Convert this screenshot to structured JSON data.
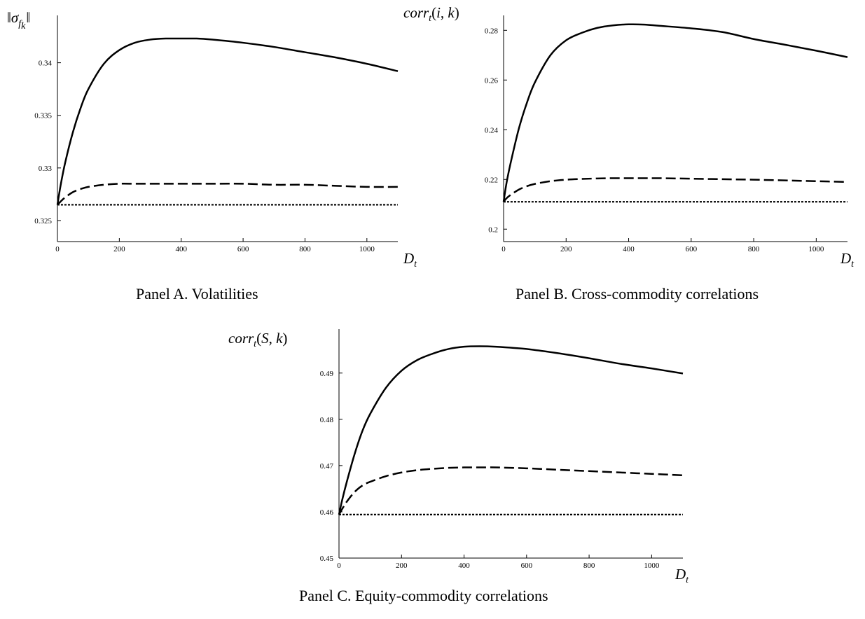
{
  "chart_data": [
    {
      "type": "line",
      "panel": "A",
      "caption": "Panel A. Volatilities",
      "ylabel": "||σ_fk||",
      "xlabel": "D_t",
      "xlim": [
        0,
        1100
      ],
      "ylim": [
        0.323,
        0.3445
      ],
      "xticks": [
        0,
        200,
        400,
        600,
        800,
        1000
      ],
      "yticks": [
        0.325,
        0.33,
        0.335,
        0.34
      ],
      "ytick_labels": [
        "0.325",
        "0.33",
        "0.335",
        "0.34"
      ],
      "x": [
        0,
        10,
        25,
        50,
        75,
        100,
        150,
        200,
        250,
        300,
        350,
        400,
        450,
        500,
        600,
        700,
        800,
        900,
        1000,
        1100
      ],
      "series": [
        {
          "style": "solid",
          "values": [
            0.3265,
            0.3283,
            0.3305,
            0.3334,
            0.3357,
            0.3375,
            0.3399,
            0.3412,
            0.3419,
            0.3422,
            0.3423,
            0.3423,
            0.3423,
            0.3422,
            0.3419,
            0.3415,
            0.341,
            0.3405,
            0.3399,
            0.3392
          ]
        },
        {
          "style": "dashed",
          "values": [
            0.3265,
            0.3268,
            0.3272,
            0.3277,
            0.328,
            0.3282,
            0.3284,
            0.3285,
            0.3285,
            0.3285,
            0.3285,
            0.3285,
            0.3285,
            0.3285,
            0.3285,
            0.3284,
            0.3284,
            0.3283,
            0.3282,
            0.3282
          ]
        },
        {
          "style": "dotted",
          "values": [
            0.3265,
            0.3265,
            0.3265,
            0.3265,
            0.3265,
            0.3265,
            0.3265,
            0.3265,
            0.3265,
            0.3265,
            0.3265,
            0.3265,
            0.3265,
            0.3265,
            0.3265,
            0.3265,
            0.3265,
            0.3265,
            0.3265,
            0.3265
          ]
        }
      ]
    },
    {
      "type": "line",
      "panel": "B",
      "caption": "Panel B. Cross-commodity correlations",
      "ylabel": "corr_t(i, k)",
      "xlabel": "D_t",
      "xlim": [
        0,
        1100
      ],
      "ylim": [
        0.195,
        0.286
      ],
      "xticks": [
        0,
        200,
        400,
        600,
        800,
        1000
      ],
      "yticks": [
        0.2,
        0.22,
        0.24,
        0.26,
        0.28
      ],
      "ytick_labels": [
        "0.2",
        "0.22",
        "0.24",
        "0.26",
        "0.28"
      ],
      "x": [
        0,
        10,
        25,
        50,
        75,
        100,
        150,
        200,
        250,
        300,
        350,
        400,
        450,
        500,
        600,
        700,
        800,
        900,
        1000,
        1100
      ],
      "series": [
        {
          "style": "solid",
          "values": [
            0.211,
            0.219,
            0.228,
            0.241,
            0.251,
            0.259,
            0.27,
            0.276,
            0.279,
            0.281,
            0.282,
            0.2824,
            0.2823,
            0.2818,
            0.2808,
            0.2793,
            0.2765,
            0.2742,
            0.2718,
            0.2692
          ]
        },
        {
          "style": "dashed",
          "values": [
            0.211,
            0.2125,
            0.214,
            0.216,
            0.2173,
            0.2182,
            0.2193,
            0.2199,
            0.2202,
            0.2204,
            0.2205,
            0.2205,
            0.2205,
            0.2205,
            0.2203,
            0.2201,
            0.2199,
            0.2196,
            0.2193,
            0.219
          ]
        },
        {
          "style": "dotted",
          "values": [
            0.211,
            0.211,
            0.211,
            0.211,
            0.211,
            0.211,
            0.211,
            0.211,
            0.211,
            0.211,
            0.211,
            0.211,
            0.211,
            0.211,
            0.211,
            0.211,
            0.211,
            0.211,
            0.211,
            0.211
          ]
        }
      ]
    },
    {
      "type": "line",
      "panel": "C",
      "caption": "Panel C. Equity-commodity correlations",
      "ylabel": "corr_t(S, k)",
      "xlabel": "D_t",
      "xlim": [
        0,
        1100
      ],
      "ylim": [
        0.45,
        0.4995
      ],
      "xticks": [
        0,
        200,
        400,
        600,
        800,
        1000
      ],
      "yticks": [
        0.45,
        0.46,
        0.47,
        0.48,
        0.49
      ],
      "ytick_labels": [
        "0.45",
        "0.46",
        "0.47",
        "0.48",
        "0.49"
      ],
      "x": [
        0,
        10,
        25,
        50,
        75,
        100,
        150,
        200,
        250,
        300,
        350,
        400,
        450,
        500,
        600,
        700,
        800,
        900,
        1000,
        1100
      ],
      "series": [
        {
          "style": "solid",
          "values": [
            0.4594,
            0.4625,
            0.4665,
            0.4725,
            0.4775,
            0.4812,
            0.4868,
            0.4905,
            0.4928,
            0.4942,
            0.4952,
            0.4957,
            0.4958,
            0.4957,
            0.4952,
            0.4943,
            0.4932,
            0.492,
            0.491,
            0.4899
          ]
        },
        {
          "style": "dashed",
          "values": [
            0.4594,
            0.4606,
            0.4622,
            0.4643,
            0.4657,
            0.4665,
            0.4677,
            0.4685,
            0.469,
            0.4693,
            0.4695,
            0.4696,
            0.4696,
            0.4696,
            0.4694,
            0.4691,
            0.4688,
            0.4685,
            0.4682,
            0.4679
          ]
        },
        {
          "style": "dotted",
          "values": [
            0.4594,
            0.4594,
            0.4594,
            0.4594,
            0.4594,
            0.4594,
            0.4594,
            0.4594,
            0.4594,
            0.4594,
            0.4594,
            0.4594,
            0.4594,
            0.4594,
            0.4594,
            0.4594,
            0.4594,
            0.4594,
            0.4594,
            0.4594
          ]
        }
      ]
    }
  ]
}
